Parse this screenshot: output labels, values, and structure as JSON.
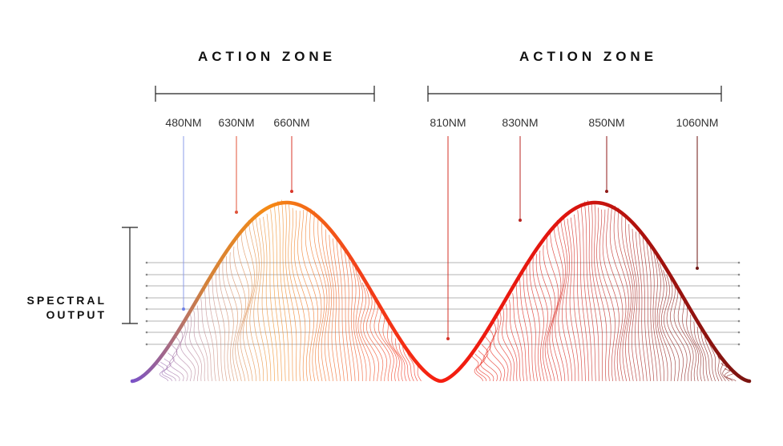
{
  "zones": [
    {
      "label": "ACTION ZONE"
    },
    {
      "label": "ACTION ZONE"
    }
  ],
  "wavelengths": [
    {
      "label": "480NM",
      "color": "#6c7fe6"
    },
    {
      "label": "630NM",
      "color": "#e0533a"
    },
    {
      "label": "660NM",
      "color": "#d9362a"
    },
    {
      "label": "810NM",
      "color": "#d43126"
    },
    {
      "label": "830NM",
      "color": "#b82420"
    },
    {
      "label": "850NM",
      "color": "#8f1a18"
    },
    {
      "label": "1060NM",
      "color": "#6e1512"
    }
  ],
  "axis": {
    "line1": "SPECTRAL",
    "line2": "OUTPUT"
  },
  "colors": {
    "violet": "#7a52c8",
    "orange": "#f08a1c",
    "red": "#f01e0f",
    "dark_red": "#7d1410",
    "guide": "#9a9a9a"
  }
}
